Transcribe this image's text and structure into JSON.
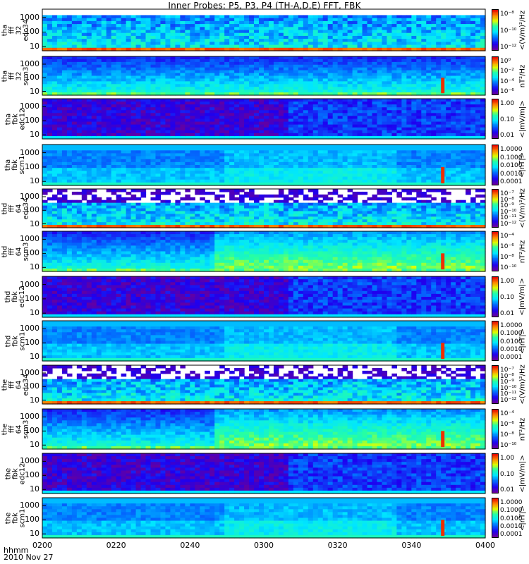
{
  "chart_data": {
    "type": "heatmap",
    "title": "Inner Probes: P5, P3, P4 (TH-A,D,E) FFT, FBK",
    "x_ticks": [
      "0200",
      "0220",
      "0240",
      "0300",
      "0320",
      "0340",
      "0400"
    ],
    "footer": {
      "label": "hhmm",
      "date": "2010 Nov 27"
    },
    "panels": [
      {
        "label": [
          "tha",
          "fff",
          "32",
          "edc34"
        ],
        "y_ticks": [
          "1000",
          "100",
          "10"
        ],
        "cb_ticks": [
          "10⁻⁸",
          "10⁻¹⁰",
          "10⁻¹²"
        ],
        "cb_unit": "<(V/m)²/Hz"
      },
      {
        "label": [
          "tha",
          "fff",
          "32",
          "scm3"
        ],
        "y_ticks": [
          "1000",
          "100",
          "10"
        ],
        "cb_ticks": [
          "10⁰",
          "10⁻²",
          "10⁻⁴",
          "10⁻⁶"
        ],
        "cb_unit": "nT²/Hz"
      },
      {
        "label": [
          "tha",
          "fbk",
          "edc12"
        ],
        "y_ticks": [
          "1000",
          "100",
          "10"
        ],
        "cb_ticks": [
          "1.00",
          "0.10",
          "0.01"
        ],
        "cb_unit": "<|mV/m|>"
      },
      {
        "label": [
          "tha",
          "fbk",
          "scm1"
        ],
        "y_ticks": [
          "1000",
          "100",
          "10"
        ],
        "cb_ticks": [
          "1.0000",
          "0.1000",
          "0.0100",
          "0.0010",
          "0.0001"
        ],
        "cb_unit": "<|nT|>"
      },
      {
        "label": [
          "thd",
          "fff",
          "64",
          "edc34"
        ],
        "y_ticks": [
          "1000",
          "100",
          "10"
        ],
        "cb_ticks": [
          "10⁻⁷",
          "10⁻⁸",
          "10⁻⁹",
          "10⁻¹⁰",
          "10⁻¹¹",
          "10⁻¹²"
        ],
        "cb_unit": "<(V/m)²/Hz"
      },
      {
        "label": [
          "thd",
          "fff",
          "64",
          "scm3"
        ],
        "y_ticks": [
          "1000",
          "100",
          "10"
        ],
        "cb_ticks": [
          "10⁻⁴",
          "10⁻⁶",
          "10⁻⁸",
          "10⁻¹⁰"
        ],
        "cb_unit": "nT²/Hz"
      },
      {
        "label": [
          "thd",
          "fbk",
          "edc12"
        ],
        "y_ticks": [
          "1000",
          "100",
          "10"
        ],
        "cb_ticks": [
          "1.00",
          "0.10",
          "0.01"
        ],
        "cb_unit": "<|mV/m|>"
      },
      {
        "label": [
          "thd",
          "fbk",
          "scm1"
        ],
        "y_ticks": [
          "1000",
          "100",
          "10"
        ],
        "cb_ticks": [
          "1.0000",
          "0.1000",
          "0.0100",
          "0.0010",
          "0.0001"
        ],
        "cb_unit": "<|nT|>"
      },
      {
        "label": [
          "the",
          "fff",
          "64",
          "edc34"
        ],
        "y_ticks": [
          "1000",
          "100",
          "10"
        ],
        "cb_ticks": [
          "10⁻⁷",
          "10⁻⁸",
          "10⁻⁹",
          "10⁻¹⁰",
          "10⁻¹¹",
          "10⁻¹²"
        ],
        "cb_unit": "<(V/m)²/Hz"
      },
      {
        "label": [
          "the",
          "fff",
          "64",
          "scm3"
        ],
        "y_ticks": [
          "1000",
          "100",
          "10"
        ],
        "cb_ticks": [
          "10⁻⁴",
          "10⁻⁶",
          "10⁻⁸",
          "10⁻¹⁰"
        ],
        "cb_unit": "nT²/Hz"
      },
      {
        "label": [
          "the",
          "fbk",
          "edc12"
        ],
        "y_ticks": [
          "1000",
          "100",
          "10"
        ],
        "cb_ticks": [
          "1.00",
          "0.10",
          "0.01"
        ],
        "cb_unit": "<|mV/m|>"
      },
      {
        "label": [
          "the",
          "fbk",
          "scm1"
        ],
        "y_ticks": [
          "1000",
          "100",
          "10"
        ],
        "cb_ticks": [
          "1.0000",
          "0.1000",
          "0.0100",
          "0.0010",
          "0.0001"
        ],
        "cb_unit": "<|nT|>"
      }
    ]
  }
}
